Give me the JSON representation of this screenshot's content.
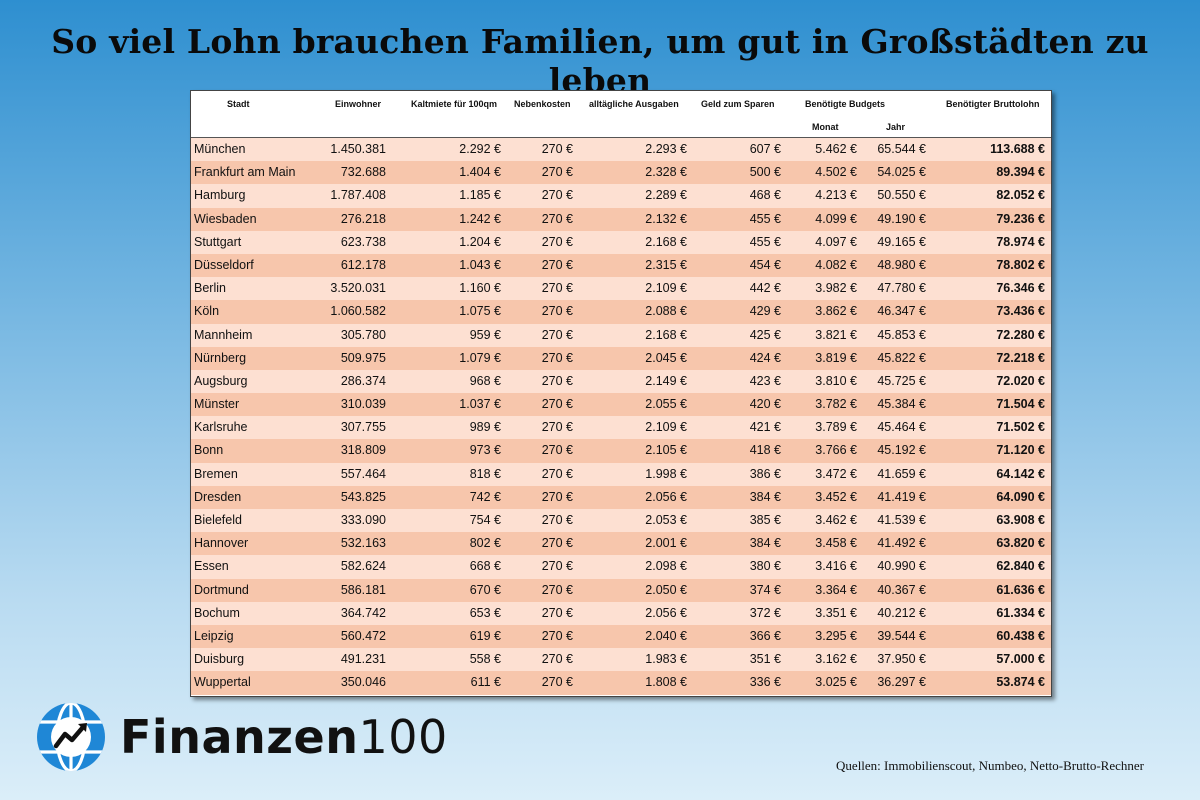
{
  "title": "So viel Lohn brauchen Familien, um gut in Großstädten zu leben",
  "table": {
    "headers": {
      "stadt": "Stadt",
      "einwohner": "Einwohner",
      "kaltmiete": "Kaltmiete für 100qm",
      "nebenkosten": "Nebenkosten",
      "ausgaben": "alltägliche Ausgaben",
      "sparen": "Geld zum Sparen",
      "budgets": "Benötigte Budgets",
      "monat": "Monat",
      "jahr": "Jahr",
      "brutto": "Benötigter Bruttolohn"
    },
    "rows": [
      [
        "München",
        "1.450.381",
        "2.292 €",
        "270 €",
        "2.293 €",
        "607 €",
        "5.462 €",
        "65.544 €",
        "113.688 €"
      ],
      [
        "Frankfurt am Main",
        "732.688",
        "1.404 €",
        "270 €",
        "2.328 €",
        "500 €",
        "4.502 €",
        "54.025 €",
        "89.394 €"
      ],
      [
        "Hamburg",
        "1.787.408",
        "1.185 €",
        "270 €",
        "2.289 €",
        "468 €",
        "4.213 €",
        "50.550 €",
        "82.052 €"
      ],
      [
        "Wiesbaden",
        "276.218",
        "1.242 €",
        "270 €",
        "2.132 €",
        "455 €",
        "4.099 €",
        "49.190 €",
        "79.236 €"
      ],
      [
        "Stuttgart",
        "623.738",
        "1.204 €",
        "270 €",
        "2.168 €",
        "455 €",
        "4.097 €",
        "49.165 €",
        "78.974 €"
      ],
      [
        "Düsseldorf",
        "612.178",
        "1.043 €",
        "270 €",
        "2.315 €",
        "454 €",
        "4.082 €",
        "48.980 €",
        "78.802 €"
      ],
      [
        "Berlin",
        "3.520.031",
        "1.160 €",
        "270 €",
        "2.109 €",
        "442 €",
        "3.982 €",
        "47.780 €",
        "76.346 €"
      ],
      [
        "Köln",
        "1.060.582",
        "1.075 €",
        "270 €",
        "2.088 €",
        "429 €",
        "3.862 €",
        "46.347 €",
        "73.436 €"
      ],
      [
        "Mannheim",
        "305.780",
        "959 €",
        "270 €",
        "2.168 €",
        "425 €",
        "3.821 €",
        "45.853 €",
        "72.280 €"
      ],
      [
        "Nürnberg",
        "509.975",
        "1.079 €",
        "270 €",
        "2.045 €",
        "424 €",
        "3.819 €",
        "45.822 €",
        "72.218 €"
      ],
      [
        "Augsburg",
        "286.374",
        "968 €",
        "270 €",
        "2.149 €",
        "423 €",
        "3.810 €",
        "45.725 €",
        "72.020 €"
      ],
      [
        "Münster",
        "310.039",
        "1.037 €",
        "270 €",
        "2.055 €",
        "420 €",
        "3.782 €",
        "45.384 €",
        "71.504 €"
      ],
      [
        "Karlsruhe",
        "307.755",
        "989 €",
        "270 €",
        "2.109 €",
        "421 €",
        "3.789 €",
        "45.464 €",
        "71.502 €"
      ],
      [
        "Bonn",
        "318.809",
        "973 €",
        "270 €",
        "2.105 €",
        "418 €",
        "3.766 €",
        "45.192 €",
        "71.120 €"
      ],
      [
        "Bremen",
        "557.464",
        "818 €",
        "270 €",
        "1.998 €",
        "386 €",
        "3.472 €",
        "41.659 €",
        "64.142 €"
      ],
      [
        "Dresden",
        "543.825",
        "742 €",
        "270 €",
        "2.056 €",
        "384 €",
        "3.452 €",
        "41.419 €",
        "64.090 €"
      ],
      [
        "Bielefeld",
        "333.090",
        "754 €",
        "270 €",
        "2.053 €",
        "385 €",
        "3.462 €",
        "41.539 €",
        "63.908 €"
      ],
      [
        "Hannover",
        "532.163",
        "802 €",
        "270 €",
        "2.001 €",
        "384 €",
        "3.458 €",
        "41.492 €",
        "63.820 €"
      ],
      [
        "Essen",
        "582.624",
        "668 €",
        "270 €",
        "2.098 €",
        "380 €",
        "3.416 €",
        "40.990 €",
        "62.840 €"
      ],
      [
        "Dortmund",
        "586.181",
        "670 €",
        "270 €",
        "2.050 €",
        "374 €",
        "3.364 €",
        "40.367 €",
        "61.636 €"
      ],
      [
        "Bochum",
        "364.742",
        "653 €",
        "270 €",
        "2.056 €",
        "372 €",
        "3.351 €",
        "40.212 €",
        "61.334 €"
      ],
      [
        "Leipzig",
        "560.472",
        "619 €",
        "270 €",
        "2.040 €",
        "366 €",
        "3.295 €",
        "39.544 €",
        "60.438 €"
      ],
      [
        "Duisburg",
        "491.231",
        "558 €",
        "270 €",
        "1.983 €",
        "351 €",
        "3.162 €",
        "37.950 €",
        "57.000 €"
      ],
      [
        "Wuppertal",
        "350.046",
        "611 €",
        "270 €",
        "1.808 €",
        "336 €",
        "3.025 €",
        "36.297 €",
        "53.874 €"
      ]
    ]
  },
  "logo": {
    "brand": "Finanzen",
    "number": "100",
    "icon": "globe-chart-icon",
    "color": "#1f87d6"
  },
  "sources": "Quellen: Immobilienscout, Numbeo, Netto-Brutto-Rechner"
}
